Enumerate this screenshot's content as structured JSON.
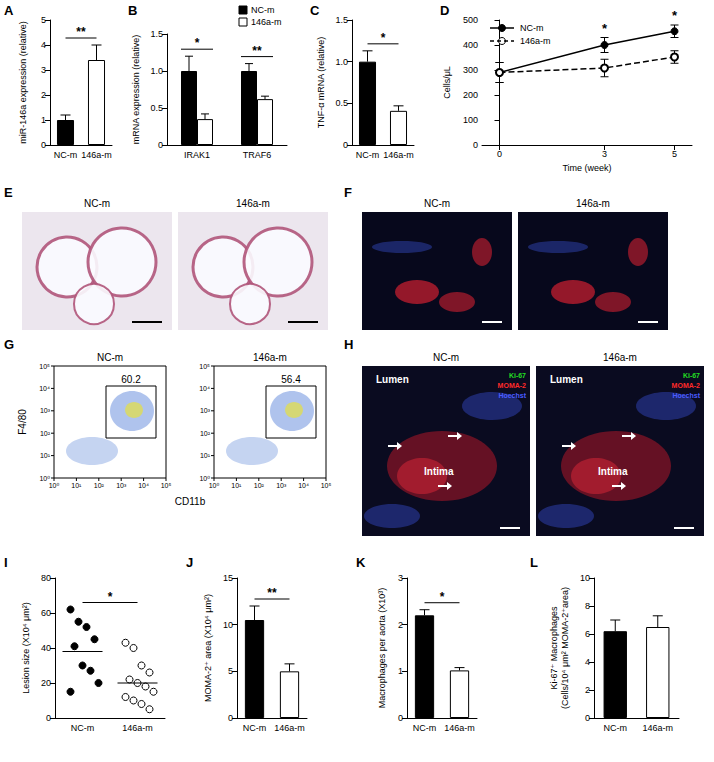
{
  "chart_data": [
    {
      "panel": "A",
      "type": "bar",
      "ylabel": "miR-146a expression (relative)",
      "categories": [
        "NC-m",
        "146a-m"
      ],
      "values": [
        1.0,
        3.4
      ],
      "errors": [
        0.2,
        0.6
      ],
      "colors": [
        "#000000",
        "#ffffff"
      ],
      "ylim": [
        0,
        5
      ],
      "yticks": [
        0,
        1,
        2,
        3,
        4,
        5
      ],
      "significance": [
        {
          "categories": [
            "NC-m",
            "146a-m"
          ],
          "label": "**"
        }
      ]
    },
    {
      "panel": "B",
      "type": "bar",
      "ylabel": "mRNA expression (relative)",
      "categories": [
        "IRAK1",
        "TRAF6"
      ],
      "series": [
        {
          "name": "NC-m",
          "color": "#000000",
          "values": [
            1.0,
            1.0
          ],
          "errors": [
            0.2,
            0.1
          ]
        },
        {
          "name": "146a-m",
          "color": "#ffffff",
          "values": [
            0.35,
            0.62
          ],
          "errors": [
            0.07,
            0.04
          ]
        }
      ],
      "legend": "top-right",
      "ylim": [
        0,
        1.5
      ],
      "yticks": [
        0,
        0.5,
        {
          "value": 1,
          "label": "1.0"
        },
        1.5
      ],
      "significance": [
        {
          "categories": [
            "IRAK1"
          ],
          "label": "*"
        },
        {
          "categories": [
            "TRAF6"
          ],
          "label": "**"
        }
      ]
    },
    {
      "panel": "C",
      "type": "bar",
      "ylabel": "TNF-α mRNA (relative)",
      "categories": [
        "NC-m",
        "146a-m"
      ],
      "values": [
        1.0,
        0.41
      ],
      "errors": [
        0.13,
        0.06
      ],
      "colors": [
        "#000000",
        "#ffffff"
      ],
      "ylim": [
        0,
        1.5
      ],
      "yticks": [
        0,
        0.5,
        {
          "value": 1,
          "label": "1.0"
        },
        1.5
      ],
      "significance": [
        {
          "categories": [
            "NC-m",
            "146a-m"
          ],
          "label": "*"
        }
      ]
    },
    {
      "panel": "D",
      "type": "line",
      "ylabel": "Cells/μL",
      "xlabel": "Time (week)",
      "x": [
        0,
        3,
        5
      ],
      "series": [
        {
          "name": "NC-m",
          "color": "#000000",
          "marker": "circle",
          "line_style": "solid",
          "values": [
            290,
            400,
            455
          ],
          "errors": [
            40,
            30,
            25
          ]
        },
        {
          "name": "146a-m",
          "color": "#000000",
          "marker": "open_circle",
          "line_style": "dashed",
          "values": [
            290,
            308,
            352
          ],
          "errors": [
            40,
            35,
            25
          ]
        }
      ],
      "legend": "top-left",
      "xlim": [
        -0.5,
        5.5
      ],
      "xticks": [
        0,
        3,
        5
      ],
      "ylim": [
        0,
        500
      ],
      "yticks": [
        0,
        100,
        200,
        300,
        400,
        500
      ],
      "annotations": [
        {
          "x": 3,
          "label": "*"
        },
        {
          "x": 5,
          "label": "*"
        }
      ]
    },
    {
      "panel": "I",
      "type": "scatter",
      "ylabel": "Lesion size (X10⁴ μm²)",
      "series": [
        {
          "name": "NC-m",
          "color": "#000000",
          "marker": "circle",
          "values": [
            62,
            55,
            52,
            45,
            41,
            30,
            27,
            20,
            15
          ]
        },
        {
          "name": "146a-m",
          "color": "#000000",
          "marker": "open_circle",
          "values": [
            43,
            40,
            30,
            26,
            22,
            20,
            18,
            15,
            12,
            10,
            8,
            5
          ]
        }
      ],
      "means": [
        38,
        20
      ],
      "ylim": [
        0,
        80
      ],
      "yticks": [
        0,
        20,
        40,
        60,
        80
      ],
      "significance": [
        {
          "categories": [
            "NC-m",
            "146a-m"
          ],
          "label": "*"
        }
      ]
    },
    {
      "panel": "J",
      "type": "bar",
      "ylabel": "MOMA-2⁺ area (X10⁴ μm²)",
      "categories": [
        "NC-m",
        "146a-m"
      ],
      "values": [
        10.5,
        5.0
      ],
      "errors": [
        1.5,
        0.8
      ],
      "colors": [
        "#000000",
        "#ffffff"
      ],
      "ylim": [
        0,
        15
      ],
      "yticks": [
        0,
        5,
        10,
        15
      ],
      "significance": [
        {
          "categories": [
            "NC-m",
            "146a-m"
          ],
          "label": "**"
        }
      ]
    },
    {
      "panel": "K",
      "type": "bar",
      "ylabel": "Macrophages per aorta (X10³)",
      "categories": [
        "NC-m",
        "146a-m"
      ],
      "values": [
        2.2,
        1.02
      ],
      "errors": [
        0.12,
        0.06
      ],
      "colors": [
        "#000000",
        "#ffffff"
      ],
      "ylim": [
        0,
        3
      ],
      "yticks": [
        0,
        1,
        2,
        3
      ],
      "significance": [
        {
          "categories": [
            "NC-m",
            "146a-m"
          ],
          "label": "*"
        }
      ]
    },
    {
      "panel": "L",
      "type": "bar",
      "ylabel": "Ki-67⁺ Macrophages\n(Cells/10⁴ μm² MOMA-2⁺area)",
      "categories": [
        "NC-m",
        "146a-m"
      ],
      "values": [
        6.2,
        6.5
      ],
      "errors": [
        0.8,
        0.8
      ],
      "colors": [
        "#000000",
        "#ffffff"
      ],
      "ylim": [
        0,
        10
      ],
      "yticks": [
        0,
        2,
        4,
        6,
        8,
        10
      ]
    }
  ],
  "image_panels": [
    {
      "panel": "E",
      "images": [
        {
          "label": "NC-m"
        },
        {
          "label": "146a-m"
        }
      ]
    },
    {
      "panel": "F",
      "images": [
        {
          "label": "NC-m"
        },
        {
          "label": "146a-m"
        }
      ]
    },
    {
      "panel": "G",
      "x_label": "CD11b",
      "y_label": "F4/80",
      "ticks": [
        "10⁰",
        "10¹",
        "10²",
        "10³",
        "10⁴",
        "10⁵"
      ],
      "images": [
        {
          "label": "NC-m",
          "gate_percent": 60.2
        },
        {
          "label": "146a-m",
          "gate_percent": 56.4
        }
      ]
    },
    {
      "panel": "H",
      "images": [
        {
          "label": "NC-m"
        },
        {
          "label": "146a-m"
        }
      ],
      "texts": [
        "Lumen",
        "Intima"
      ],
      "stains": [
        {
          "label": "Ki-67",
          "color": "#22dd22"
        },
        {
          "label": "MOMA-2",
          "color": "#ff2a2a"
        },
        {
          "label": "Hoechst",
          "color": "#4a5cff"
        }
      ]
    }
  ]
}
